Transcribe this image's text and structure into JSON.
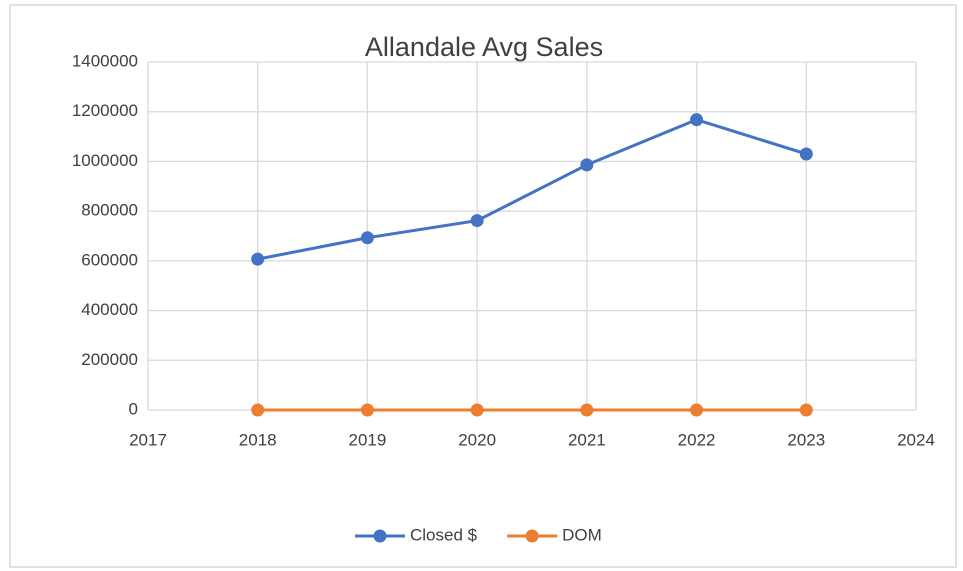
{
  "chart_data": {
    "type": "line",
    "title": "Allandale Avg Sales",
    "x": [
      2018,
      2019,
      2020,
      2021,
      2022,
      2023
    ],
    "series": [
      {
        "name": "Closed $",
        "color": "#4472c4",
        "values": [
          607000,
          693000,
          762000,
          986000,
          1168000,
          1030000
        ]
      },
      {
        "name": "DOM",
        "color": "#ed7d31",
        "values": [
          20,
          15,
          10,
          5,
          25,
          10
        ]
      }
    ],
    "xlim": [
      2017,
      2024
    ],
    "xticks": [
      2017,
      2018,
      2019,
      2020,
      2021,
      2022,
      2023,
      2024
    ],
    "ylim": [
      0,
      1400000
    ],
    "yticks": [
      0,
      200000,
      400000,
      600000,
      800000,
      1000000,
      1200000,
      1400000
    ],
    "grid": true,
    "legend": "bottom"
  }
}
